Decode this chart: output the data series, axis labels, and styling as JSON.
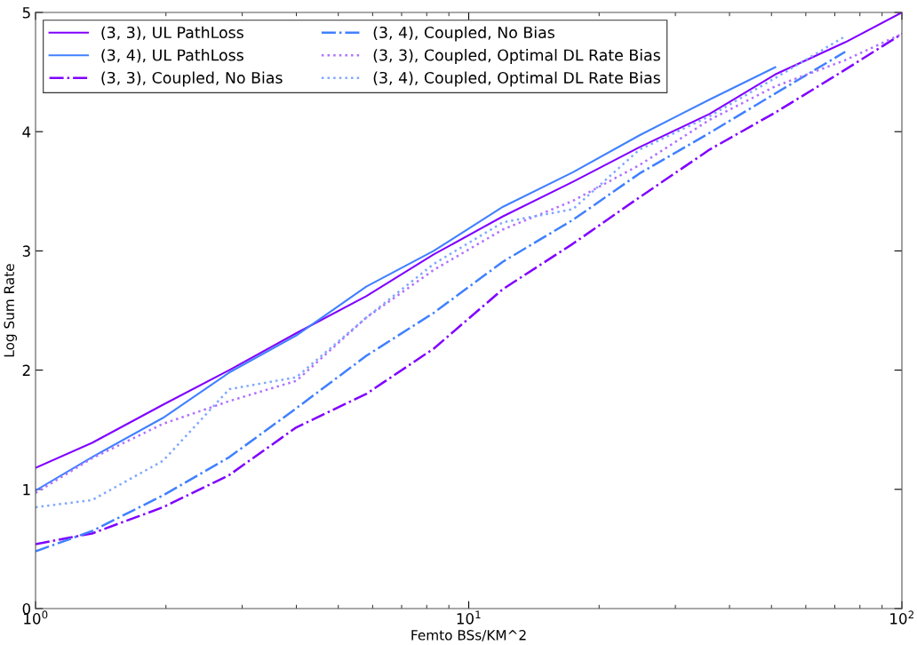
{
  "chart_data": {
    "type": "line",
    "xlabel": "Femto BSs/KM^2",
    "ylabel": "Log Sum Rate",
    "log": "x",
    "grid": false,
    "legend": "top left",
    "xlim": [
      1,
      100
    ],
    "xticks": [
      {
        "value": 1,
        "label": "10$^{0}$"
      },
      {
        "value": 10,
        "label": "10$^{1}$"
      },
      {
        "value": 100,
        "label": "10$^{2}$"
      }
    ],
    "ylim": [
      0,
      5
    ],
    "yticks": [
      0,
      1,
      2,
      3,
      4,
      5
    ],
    "x": [
      1,
      1.35,
      1.97,
      2.8,
      4.0,
      5.8,
      8.3,
      12,
      17.4,
      24.8,
      36,
      51,
      74,
      100
    ],
    "series": [
      {
        "name": "(3, 3), UL PathLoss",
        "color": "#8000ff",
        "line_style": "solid",
        "values": [
          1.18,
          1.39,
          1.71,
          2.0,
          2.31,
          2.62,
          2.97,
          3.29,
          3.58,
          3.87,
          4.15,
          4.48,
          4.75,
          5.0
        ]
      },
      {
        "name": "(3, 4), UL PathLoss",
        "color": "#4080ff",
        "line_style": "solid",
        "values": [
          0.99,
          1.27,
          1.6,
          1.98,
          2.29,
          2.7,
          3.0,
          3.37,
          3.66,
          3.97,
          4.27,
          4.54,
          null,
          null
        ]
      },
      {
        "name": "(3, 3), Coupled, No Bias",
        "color": "#8000ff",
        "line_style": "dashdot",
        "values": [
          0.54,
          0.63,
          0.85,
          1.12,
          1.52,
          1.8,
          2.18,
          2.68,
          3.06,
          3.45,
          3.85,
          4.16,
          4.52,
          4.82
        ]
      },
      {
        "name": "(3, 4), Coupled, No Bias",
        "color": "#4080ff",
        "line_style": "dashdot",
        "values": [
          0.48,
          0.65,
          0.95,
          1.27,
          1.68,
          2.12,
          2.48,
          2.91,
          3.26,
          3.65,
          3.99,
          4.32,
          4.67,
          null
        ]
      },
      {
        "name": "(3, 3), Coupled, Optimal DL Rate Bias",
        "color": "#b070ff",
        "line_style": "dotted",
        "values": [
          0.97,
          1.26,
          1.55,
          1.74,
          1.91,
          2.44,
          2.84,
          3.18,
          3.42,
          3.72,
          4.1,
          4.38,
          4.6,
          4.82
        ]
      },
      {
        "name": "(3, 4), Coupled, Optimal DL Rate Bias",
        "color": "#80a8ff",
        "line_style": "dotted",
        "values": [
          0.85,
          0.91,
          1.24,
          1.84,
          1.94,
          2.44,
          2.89,
          3.24,
          3.35,
          3.85,
          4.13,
          4.45,
          4.8,
          null
        ]
      }
    ]
  }
}
